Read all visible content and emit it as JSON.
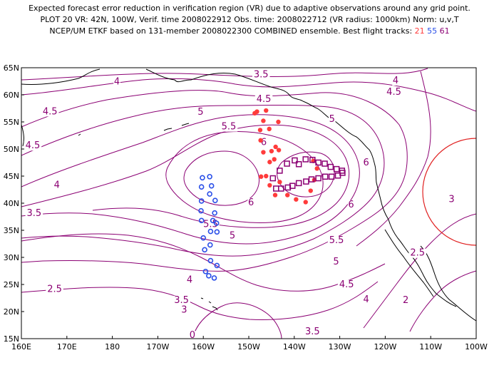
{
  "header": {
    "line1": "Expected forecast error reduction in verification region (VR) due to adaptive observations around any grid point.",
    "line2": "PLOT 20 VR: 42N, 100W, Verif. time 2008022912 Obs. time: 2008022712 (VR radius: 1000km) Norm: u,v,T",
    "line3_prefix": "NCEP/UM ETKF based on 131-member 2008022300 COMBINED ensemble.  Best flight tracks:",
    "track_21": "21",
    "track_55": "55",
    "track_61": "61"
  },
  "colors": {
    "contour": "#8b0073",
    "coast": "#000000",
    "vr_circle": "#e02020",
    "track21": "#ff3b3b",
    "track55": "#2a4fe8",
    "track61": "#8b0073"
  },
  "map": {
    "projection": "lat-lon",
    "lon_range": [
      160,
      260
    ],
    "lat_range": [
      15,
      65
    ],
    "lon_ticks": [
      "160E",
      "170E",
      "180",
      "170W",
      "160W",
      "150W",
      "140W",
      "130W",
      "120W",
      "110W",
      "100W"
    ],
    "lat_ticks": [
      "15N",
      "20N",
      "25N",
      "30N",
      "35N",
      "40N",
      "45N",
      "50N",
      "55N",
      "60N",
      "65N"
    ],
    "contour_labels": [
      {
        "text": "3.5",
        "lon": 212.7,
        "lat": 63.2
      },
      {
        "text": "4",
        "lon": 242.3,
        "lat": 62.1
      },
      {
        "text": "4",
        "lon": 181.0,
        "lat": 61.9
      },
      {
        "text": "4.5",
        "lon": 241.9,
        "lat": 60.0
      },
      {
        "text": "4.5",
        "lon": 213.3,
        "lat": 58.7
      },
      {
        "text": "5",
        "lon": 199.4,
        "lat": 56.3
      },
      {
        "text": "5",
        "lon": 228.3,
        "lat": 55.0
      },
      {
        "text": "4.5",
        "lon": 166.3,
        "lat": 56.4
      },
      {
        "text": "5.5",
        "lon": 205.6,
        "lat": 53.6
      },
      {
        "text": "4.5",
        "lon": 162.5,
        "lat": 50.1
      },
      {
        "text": "6",
        "lon": 213.3,
        "lat": 50.7
      },
      {
        "text": "6",
        "lon": 235.8,
        "lat": 47.0
      },
      {
        "text": "4",
        "lon": 167.8,
        "lat": 42.8
      },
      {
        "text": "6",
        "lon": 210.5,
        "lat": 39.6
      },
      {
        "text": "6",
        "lon": 232.5,
        "lat": 39.2
      },
      {
        "text": "3.5",
        "lon": 162.8,
        "lat": 37.6
      },
      {
        "text": "5.5",
        "lon": 201.6,
        "lat": 35.6
      },
      {
        "text": "5",
        "lon": 206.4,
        "lat": 33.5
      },
      {
        "text": "5.5",
        "lon": 229.3,
        "lat": 32.6
      },
      {
        "text": "5",
        "lon": 229.2,
        "lat": 28.7
      },
      {
        "text": "3",
        "lon": 254.6,
        "lat": 40.2
      },
      {
        "text": "2.5",
        "lon": 247.1,
        "lat": 30.3
      },
      {
        "text": "4",
        "lon": 197.0,
        "lat": 25.3
      },
      {
        "text": "4.5",
        "lon": 231.5,
        "lat": 24.5
      },
      {
        "text": "2.5",
        "lon": 167.3,
        "lat": 23.6
      },
      {
        "text": "3.5",
        "lon": 195.2,
        "lat": 21.6
      },
      {
        "text": "4",
        "lon": 235.8,
        "lat": 21.7
      },
      {
        "text": "2",
        "lon": 244.5,
        "lat": 21.6
      },
      {
        "text": "3",
        "lon": 195.8,
        "lat": 19.8
      },
      {
        "text": "0",
        "lon": 197.6,
        "lat": 15.1
      },
      {
        "text": "3.5",
        "lon": 224.0,
        "lat": 15.8
      }
    ],
    "track21": [
      [
        211.3,
        56.6
      ],
      [
        211.8,
        56.9
      ],
      [
        213.8,
        57.1
      ],
      [
        213.2,
        55.2
      ],
      [
        212.5,
        53.5
      ],
      [
        214.5,
        53.7
      ],
      [
        216.5,
        55.0
      ],
      [
        212.6,
        51.6
      ],
      [
        213.2,
        49.4
      ],
      [
        215.0,
        49.6
      ],
      [
        215.9,
        50.4
      ],
      [
        216.6,
        49.8
      ],
      [
        215.6,
        48.1
      ],
      [
        214.6,
        47.6
      ],
      [
        213.8,
        45.0
      ],
      [
        212.7,
        44.9
      ],
      [
        214.6,
        43.3
      ],
      [
        216.8,
        43.9
      ],
      [
        215.8,
        41.5
      ],
      [
        218.5,
        41.5
      ],
      [
        220.4,
        40.7
      ],
      [
        222.5,
        40.2
      ],
      [
        223.6,
        42.3
      ],
      [
        224.4,
        44.3
      ],
      [
        225.0,
        46.4
      ],
      [
        224.2,
        47.8
      ]
    ],
    "track55": [
      [
        199.8,
        44.7
      ],
      [
        201.4,
        44.9
      ],
      [
        199.6,
        43.0
      ],
      [
        201.8,
        43.2
      ],
      [
        201.4,
        41.7
      ],
      [
        199.6,
        40.4
      ],
      [
        202.6,
        40.5
      ],
      [
        199.5,
        38.6
      ],
      [
        202.5,
        38.2
      ],
      [
        199.6,
        36.8
      ],
      [
        202.1,
        36.8
      ],
      [
        202.9,
        36.3
      ],
      [
        201.6,
        34.8
      ],
      [
        203.0,
        34.7
      ],
      [
        200.0,
        33.6
      ],
      [
        201.5,
        32.3
      ],
      [
        200.3,
        31.4
      ],
      [
        201.6,
        29.4
      ],
      [
        203.0,
        28.5
      ],
      [
        200.5,
        27.4
      ],
      [
        201.2,
        26.6
      ],
      [
        202.4,
        26.2
      ]
    ],
    "track61": [
      [
        218.4,
        47.3
      ],
      [
        220.1,
        47.9
      ],
      [
        221.0,
        47.2
      ],
      [
        222.5,
        48.1
      ],
      [
        224.0,
        48.0
      ],
      [
        225.3,
        47.5
      ],
      [
        226.7,
        47.3
      ],
      [
        228.0,
        46.7
      ],
      [
        229.3,
        46.3
      ],
      [
        230.5,
        46.0
      ],
      [
        230.6,
        45.6
      ],
      [
        229.6,
        45.1
      ],
      [
        228.2,
        44.9
      ],
      [
        226.8,
        44.9
      ],
      [
        225.3,
        44.6
      ],
      [
        223.8,
        44.4
      ],
      [
        222.6,
        44.0
      ],
      [
        221.0,
        43.7
      ],
      [
        219.6,
        43.2
      ],
      [
        218.6,
        42.9
      ],
      [
        217.1,
        42.7
      ],
      [
        216.0,
        42.7
      ],
      [
        215.3,
        44.6
      ],
      [
        216.8,
        46.0
      ]
    ]
  }
}
